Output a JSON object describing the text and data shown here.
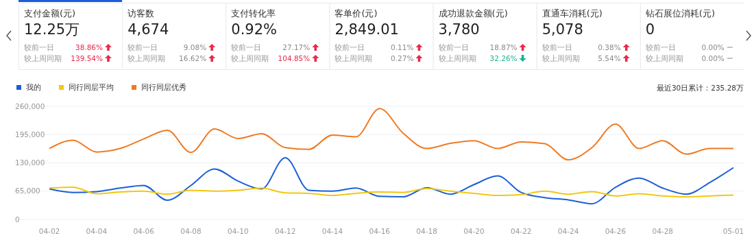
{
  "chart_data": [
    {
      "type": "other",
      "annotations": [
        "支付金额(元)",
        "12.25万",
        "较前一日",
        "38.86%",
        "较上周同期",
        "139.54%",
        "访客数",
        "4,674",
        "较前一日",
        "9.08%",
        "较上周同期",
        "16.62%",
        "支付转化率",
        "0.92%",
        "较前一日",
        "27.17%",
        "较上周同期",
        "104.85%",
        "客单价(元)",
        "2,849.01",
        "较前一日",
        "0.11%",
        "较上周同期",
        "0.27%",
        "成功退款金额(元)",
        "3,780",
        "较前一日",
        "18.87%",
        "较上周同期",
        "32.26%",
        "直通车消耗(元)",
        "5,078",
        "较前一日",
        "0.38%",
        "较上周同期",
        "5.54%",
        "钻石展位消耗(元)",
        "0",
        "较前一日",
        "0.00%",
        "较上周同期",
        "0.00%"
      ]
    },
    {
      "type": "line",
      "categories": [
        "04-02",
        null,
        "04-04",
        null,
        "04-06",
        null,
        "04-08",
        null,
        "04-10",
        null,
        "04-12",
        null,
        "04-14",
        null,
        "04-16",
        null,
        "04-18",
        null,
        "04-20",
        null,
        "04-22",
        null,
        "04-24",
        null,
        "04-26",
        null,
        "04-28",
        null,
        null,
        "05-01"
      ],
      "series": [
        {
          "name": "我的",
          "color": "#1b5fd9",
          "values": [
            70000,
            62000,
            64000,
            72000,
            78000,
            44000,
            78000,
            116000,
            88000,
            70000,
            142000,
            67000,
            65000,
            72000,
            53000,
            52000,
            73000,
            58000,
            80000,
            100000,
            62000,
            50000,
            45000,
            36000,
            74000,
            95000,
            72000,
            58000,
            85000,
            119000
          ]
        },
        {
          "name": "同行同层平均",
          "color": "#f2c811",
          "values": [
            72000,
            74000,
            59000,
            63000,
            65000,
            58000,
            67000,
            65000,
            67000,
            72000,
            61000,
            60000,
            55000,
            60000,
            63000,
            62000,
            71000,
            65000,
            60000,
            55000,
            57000,
            65000,
            58000,
            64000,
            54000,
            59000,
            54000,
            52000,
            54000,
            56000
          ]
        },
        {
          "name": "同行同层优秀",
          "color": "#f07a24",
          "values": [
            163000,
            182000,
            155000,
            163000,
            185000,
            205000,
            154000,
            208000,
            186000,
            197000,
            165000,
            161000,
            194000,
            190000,
            255000,
            198000,
            163000,
            175000,
            181000,
            163000,
            178000,
            174000,
            137000,
            165000,
            219000,
            163000,
            181000,
            150000,
            163000,
            163000
          ]
        }
      ],
      "ylim": [
        0,
        260000
      ],
      "yticks": [
        0,
        {
          "value": 65000,
          "label": "65,000"
        },
        {
          "value": 130000,
          "label": "130,000"
        },
        {
          "value": 195000,
          "label": "195,000"
        },
        {
          "value": 260000,
          "label": "260,000"
        }
      ],
      "grid": "y",
      "legend": "top left",
      "marker": "none",
      "line_style": "solid",
      "annotations": [
        "最近30日累计：235.28万"
      ]
    }
  ]
}
